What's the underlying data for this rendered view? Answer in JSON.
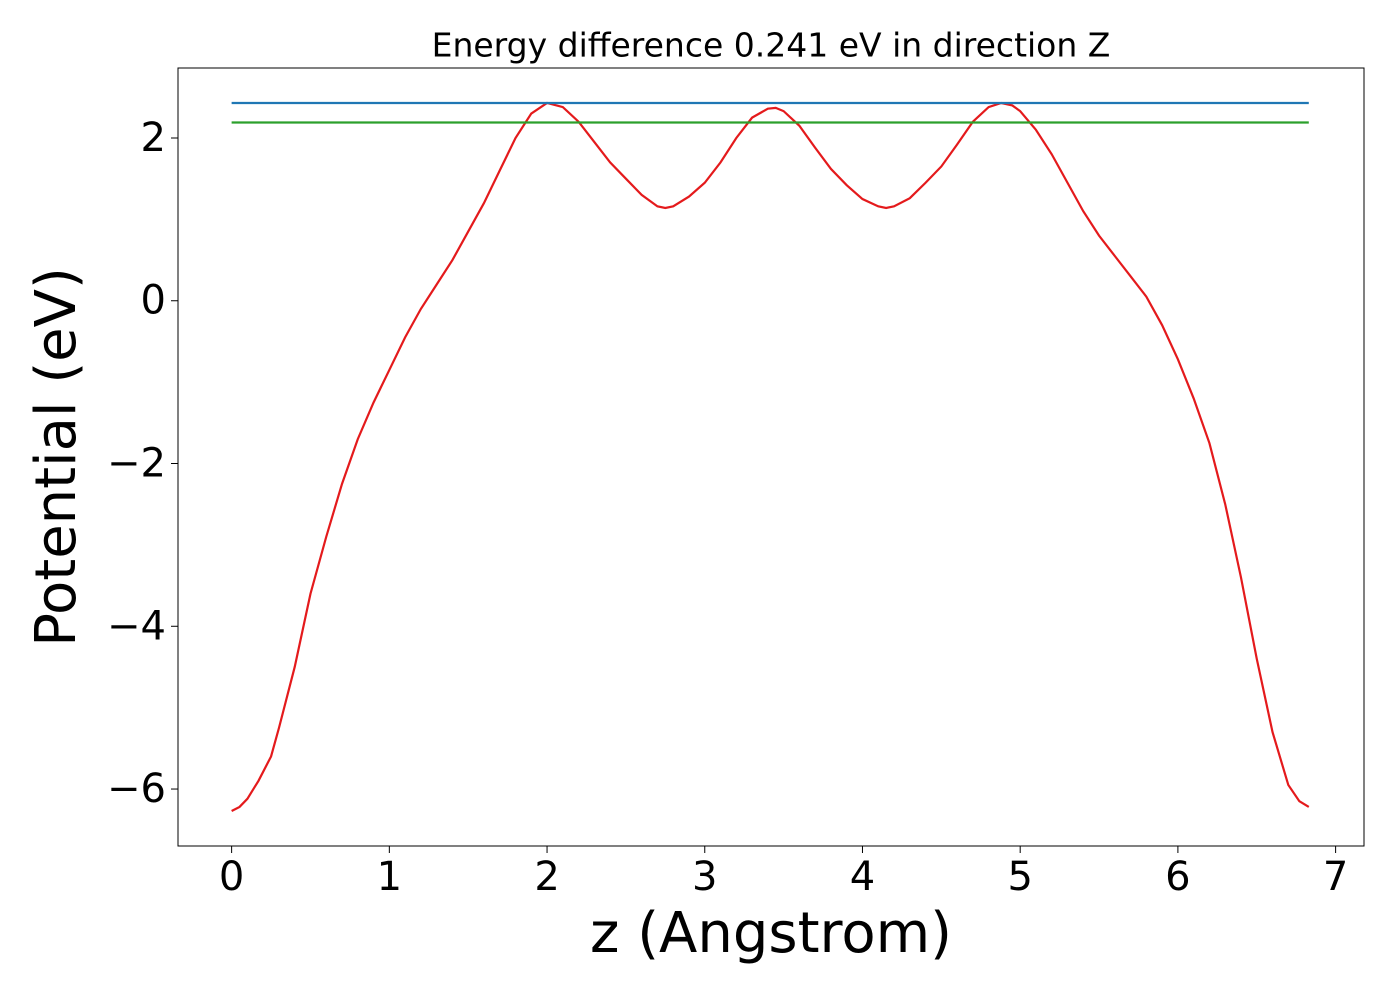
{
  "chart_data": {
    "type": "line",
    "title": "Energy difference 0.241 eV in direction Z",
    "x_label": "z (Angstrom)",
    "y_label": "Potential (eV)",
    "xlim": [
      -0.34,
      7.18
    ],
    "ylim": [
      -6.7,
      2.86
    ],
    "xticks": [
      0,
      1,
      2,
      3,
      4,
      5,
      6,
      7
    ],
    "yticks": [
      {
        "value": -6,
        "label": "−6"
      },
      {
        "value": -4,
        "label": "−4"
      },
      {
        "value": -2,
        "label": "−2"
      },
      0,
      2
    ],
    "series": [
      {
        "color": "#e41a1c",
        "x": [
          0,
          0.05,
          0.1,
          0.17,
          0.25,
          0.3,
          0.4,
          0.5,
          0.6,
          0.7,
          0.8,
          0.9,
          1.0,
          1.1,
          1.2,
          1.3,
          1.4,
          1.5,
          1.6,
          1.7,
          1.8,
          1.9,
          2.0,
          2.1,
          2.2,
          2.3,
          2.4,
          2.5,
          2.6,
          2.7,
          2.75,
          2.8,
          2.9,
          3.0,
          3.1,
          3.2,
          3.3,
          3.4,
          3.45,
          3.5,
          3.6,
          3.7,
          3.8,
          3.9,
          4.0,
          4.1,
          4.15,
          4.2,
          4.3,
          4.4,
          4.5,
          4.6,
          4.7,
          4.8,
          4.88,
          4.95,
          5.0,
          5.1,
          5.2,
          5.3,
          5.4,
          5.5,
          5.6,
          5.7,
          5.8,
          5.9,
          6.0,
          6.1,
          6.2,
          6.3,
          6.4,
          6.5,
          6.6,
          6.7,
          6.77,
          6.83
        ],
        "values": [
          -6.27,
          -6.22,
          -6.12,
          -5.9,
          -5.6,
          -5.25,
          -4.5,
          -3.6,
          -2.9,
          -2.25,
          -1.7,
          -1.25,
          -0.85,
          -0.45,
          -0.1,
          0.2,
          0.5,
          0.85,
          1.2,
          1.6,
          2.0,
          2.3,
          2.43,
          2.38,
          2.2,
          1.95,
          1.7,
          1.5,
          1.3,
          1.16,
          1.14,
          1.16,
          1.28,
          1.45,
          1.7,
          2.0,
          2.25,
          2.36,
          2.37,
          2.33,
          2.15,
          1.88,
          1.62,
          1.42,
          1.25,
          1.16,
          1.14,
          1.16,
          1.26,
          1.45,
          1.65,
          1.92,
          2.2,
          2.38,
          2.43,
          2.4,
          2.33,
          2.1,
          1.8,
          1.45,
          1.1,
          0.8,
          0.55,
          0.3,
          0.05,
          -0.3,
          -0.72,
          -1.2,
          -1.75,
          -2.5,
          -3.4,
          -4.4,
          -5.3,
          -5.95,
          -6.15,
          -6.22
        ]
      },
      {
        "color": "#1f77b4",
        "x": [
          0,
          6.83
        ],
        "values": [
          2.43,
          2.43
        ]
      },
      {
        "color": "#2ca02c",
        "x": [
          0,
          6.83
        ],
        "values": [
          2.19,
          2.19
        ]
      }
    ]
  }
}
